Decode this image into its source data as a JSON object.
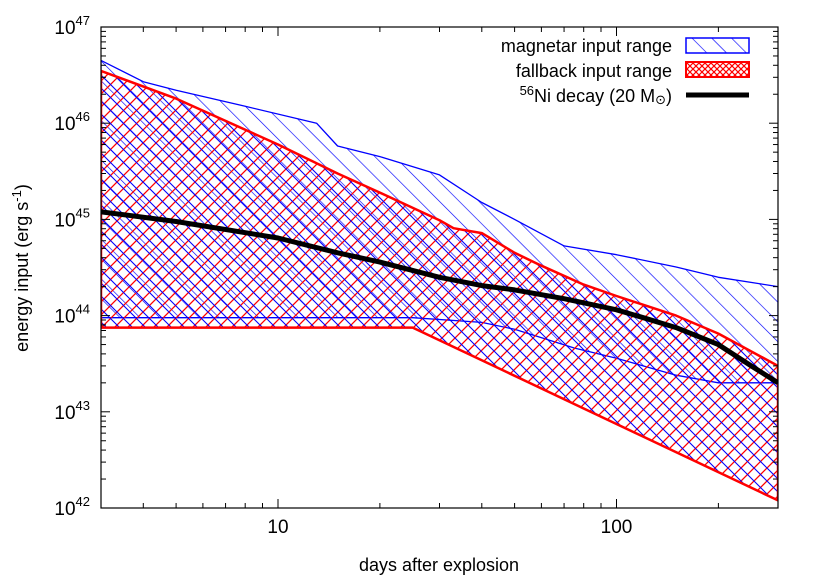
{
  "chart_data": {
    "type": "area",
    "xlabel": "days after explosion",
    "ylabel": "energy input (erg s",
    "ylabel_sup": "-1",
    "ylabel_close": ")",
    "xscale": "log",
    "yscale": "log",
    "xlim": [
      3,
      300
    ],
    "ylim": [
      1e+42,
      1e+47
    ],
    "x_ticks": [
      {
        "value": 10,
        "label": "10"
      },
      {
        "value": 100,
        "label": "100"
      }
    ],
    "y_ticks": [
      {
        "value": 1e+42,
        "base": "10",
        "exp": "42"
      },
      {
        "value": 1e+43,
        "base": "10",
        "exp": "43"
      },
      {
        "value": 1e+44,
        "base": "10",
        "exp": "44"
      },
      {
        "value": 1e+45,
        "base": "10",
        "exp": "45"
      },
      {
        "value": 1e+46,
        "base": "10",
        "exp": "46"
      },
      {
        "value": 1e+47,
        "base": "10",
        "exp": "47"
      }
    ],
    "legend_position": "top-right",
    "grid": false,
    "series": [
      {
        "name": "magnetar input range",
        "kind": "band",
        "color": "#0000ff",
        "upper": [
          [
            3,
            4.5e+46
          ],
          [
            4,
            2.7e+46
          ],
          [
            5,
            2.2e+46
          ],
          [
            8,
            1.5e+46
          ],
          [
            13,
            1e+46
          ],
          [
            15,
            5.8e+45
          ],
          [
            20,
            4.5e+45
          ],
          [
            30,
            2.9e+45
          ],
          [
            40,
            1.5e+45
          ],
          [
            50,
            1e+45
          ],
          [
            70,
            5.3e+44
          ],
          [
            100,
            4.3e+44
          ],
          [
            150,
            3.2e+44
          ],
          [
            200,
            2.5e+44
          ],
          [
            300,
            2e+44
          ]
        ],
        "lower": [
          [
            3,
            9.5e+43
          ],
          [
            25,
            9.5e+43
          ],
          [
            40,
            8.5e+43
          ],
          [
            50,
            7.2e+43
          ],
          [
            75,
            4.6e+43
          ],
          [
            100,
            3.6e+43
          ],
          [
            150,
            2.4e+43
          ],
          [
            200,
            2e+43
          ],
          [
            300,
            2e+43
          ]
        ]
      },
      {
        "name": "fallback input range",
        "kind": "band",
        "color": "#ff0000",
        "upper": [
          [
            3,
            3.5e+46
          ],
          [
            5,
            1.8e+46
          ],
          [
            10,
            6e+45
          ],
          [
            15,
            3e+45
          ],
          [
            20,
            1.9e+45
          ],
          [
            30,
            9.8e+44
          ],
          [
            33,
            8.1e+44
          ],
          [
            40,
            7.2e+44
          ],
          [
            50,
            4.5e+44
          ],
          [
            60,
            3.3e+44
          ],
          [
            80,
            2.1e+44
          ],
          [
            100,
            1.6e+44
          ],
          [
            150,
            1e+44
          ],
          [
            200,
            6.5e+43
          ],
          [
            300,
            3e+43
          ]
        ],
        "lower": [
          [
            3,
            7.5e+43
          ],
          [
            25,
            7.5e+43
          ],
          [
            300,
            1.2e+42
          ]
        ]
      },
      {
        "name": "Ni decay (20 M",
        "name_sup": "56",
        "name_suffix": ")",
        "sun_symbol": "⊙",
        "kind": "line",
        "color": "#000000",
        "points": [
          [
            3,
            1.2e+45
          ],
          [
            5,
            9.5e+44
          ],
          [
            10,
            6.4e+44
          ],
          [
            15,
            4.5e+44
          ],
          [
            20,
            3.6e+44
          ],
          [
            30,
            2.5e+44
          ],
          [
            40,
            2.05e+44
          ],
          [
            50,
            1.85e+44
          ],
          [
            70,
            1.5e+44
          ],
          [
            100,
            1.15e+44
          ],
          [
            120,
            9.5e+43
          ],
          [
            150,
            7.5e+43
          ],
          [
            200,
            5e+43
          ],
          [
            250,
            3e+43
          ],
          [
            300,
            2e+43
          ]
        ]
      }
    ]
  }
}
